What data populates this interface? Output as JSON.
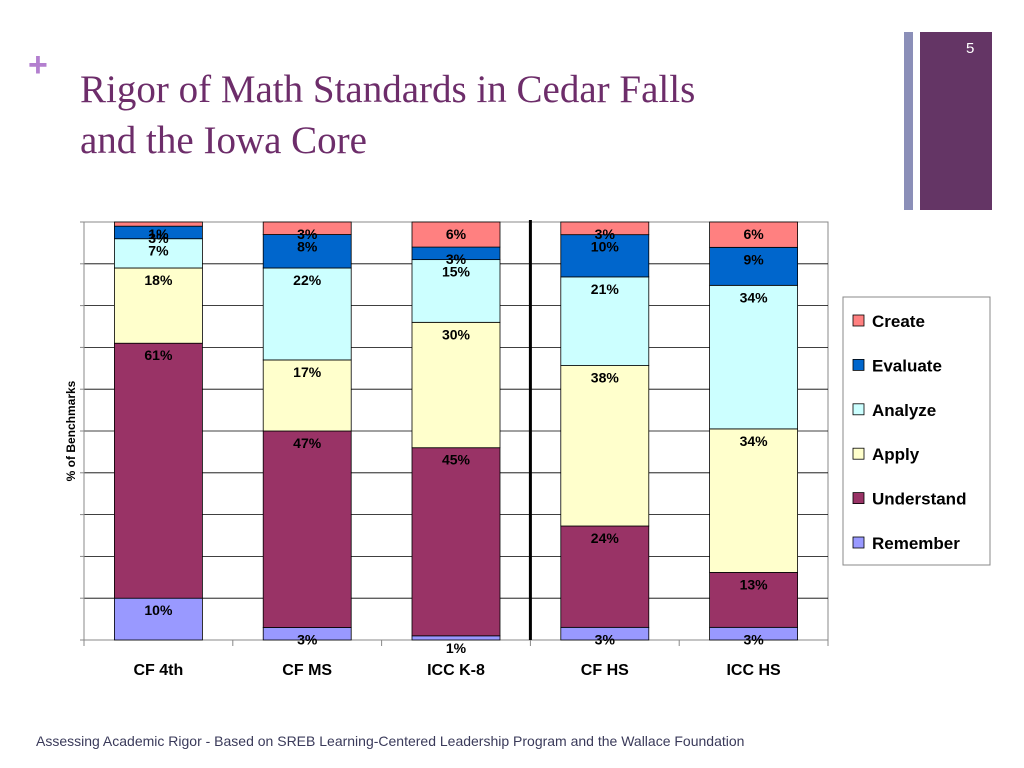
{
  "slide": {
    "plus": "+",
    "title_line1": "Rigor of Math Standards in Cedar Falls",
    "title_line2": "and the Iowa Core",
    "page_number": "5",
    "footer": "Assessing Academic Rigor - Based on SREB Learning-Centered Leadership Program and the Wallace Foundation"
  },
  "chart_data": {
    "type": "bar",
    "stacked": true,
    "normalized_to_100_percent": true,
    "ylabel": "% of Benchmarks",
    "categories": [
      "CF 4th",
      "CF MS",
      "ICC K-8",
      "CF HS",
      "ICC HS"
    ],
    "divider_after_category": "ICC K-8",
    "series": [
      {
        "name": "Remember",
        "color": "#9999ff",
        "values": [
          10,
          3,
          1,
          3,
          3
        ],
        "labels": [
          "10%",
          "3%",
          "1%",
          "3%",
          "3%"
        ]
      },
      {
        "name": "Understand",
        "color": "#993366",
        "values": [
          61,
          47,
          45,
          24,
          13
        ],
        "labels": [
          "61%",
          "47%",
          "45%",
          "24%",
          "13%"
        ]
      },
      {
        "name": "Apply",
        "color": "#ffffcc",
        "values": [
          18,
          17,
          30,
          38,
          34
        ],
        "labels": [
          "18%",
          "17%",
          "30%",
          "38%",
          "34%"
        ]
      },
      {
        "name": "Analyze",
        "color": "#ccffff",
        "values": [
          7,
          22,
          15,
          21,
          34
        ],
        "labels": [
          "7%",
          "22%",
          "15%",
          "21%",
          "34%"
        ]
      },
      {
        "name": "Evaluate",
        "color": "#0066cc",
        "values": [
          3,
          8,
          3,
          10,
          9
        ],
        "labels": [
          "3%",
          "8%",
          "3%",
          "10%",
          "9%"
        ]
      },
      {
        "name": "Create",
        "color": "#ff8080",
        "values": [
          1,
          3,
          6,
          3,
          6
        ],
        "labels": [
          "1%",
          "3%",
          "6%",
          "3%",
          "6%"
        ]
      }
    ],
    "legend_position": "right",
    "legend_order": [
      "Create",
      "Evaluate",
      "Analyze",
      "Apply",
      "Understand",
      "Remember"
    ],
    "grid": true,
    "gridline_color": "#000000"
  }
}
